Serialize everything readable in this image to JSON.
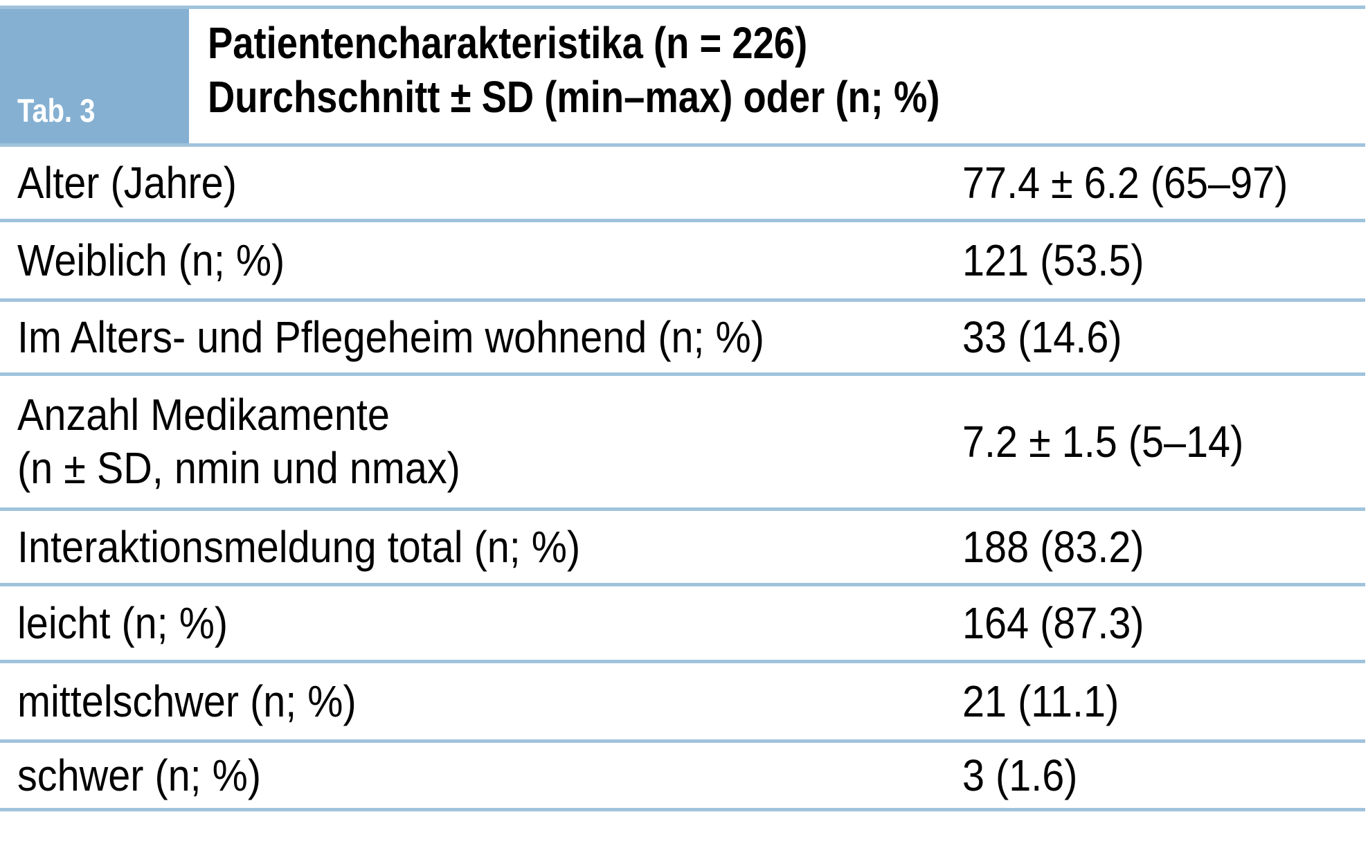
{
  "table": {
    "tab_label": "Tab. 3",
    "title_line1": "Patientencharakteristika (n = 226)",
    "title_line2": "Durchschnitt ± SD (min–max) oder (n; %)",
    "rows": [
      {
        "label": "Alter (Jahre)",
        "label2": "",
        "value": "77.4 ± 6.2 (65–97)"
      },
      {
        "label": "Weiblich (n; %)",
        "label2": "",
        "value": "121 (53.5)"
      },
      {
        "label": "Im Alters- und Pflegeheim wohnend (n; %)",
        "label2": "",
        "value": "33 (14.6)"
      },
      {
        "label": "Anzahl Medikamente",
        "label2": "(n ± SD, nmin und nmax)",
        "value": "7.2 ± 1.5 (5–14)"
      },
      {
        "label": "Interaktionsmeldung total (n; %)",
        "label2": "",
        "value": "188 (83.2)"
      },
      {
        "label": "leicht (n; %)",
        "label2": "",
        "value": "164 (87.3)"
      },
      {
        "label": "mittelschwer (n; %)",
        "label2": "",
        "value": "21 (11.1)"
      },
      {
        "label": "schwer (n; %)",
        "label2": "",
        "value": "3 (1.6)"
      }
    ],
    "colors": {
      "tab_box_blue": "#85b0d2",
      "separator_blue": "#a0c3db",
      "tab_text": "#ffffff",
      "body_text": "#000000"
    }
  }
}
